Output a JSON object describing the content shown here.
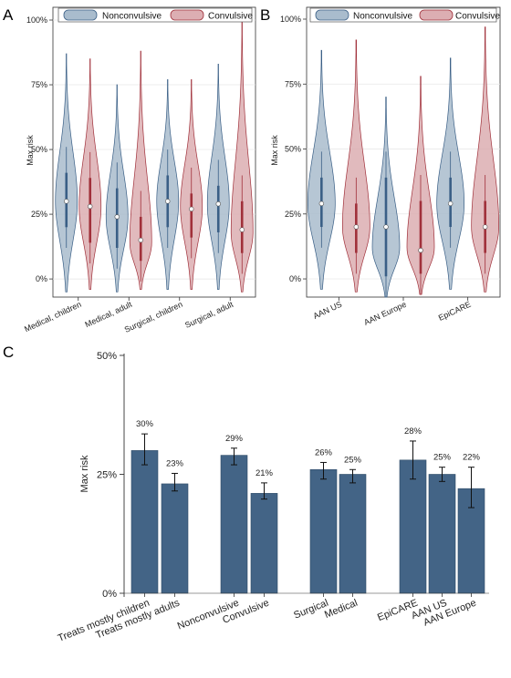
{
  "colors": {
    "nonconvulsive_fill": "#a9bccd",
    "nonconvulsive_stroke": "#3a5f86",
    "convulsive_fill": "#dcaeb2",
    "convulsive_stroke": "#a0303a",
    "bar_fill": "#436486",
    "bar_stroke": "#2e4a66"
  },
  "chart_data": [
    {
      "panel": "A",
      "type": "violin",
      "ylabel": "Max risk",
      "ytick_labels": [
        "0%",
        "25%",
        "50%",
        "75%",
        "100%"
      ],
      "yticks": [
        0,
        25,
        50,
        75,
        100
      ],
      "ylim": [
        -7,
        100
      ],
      "legend": {
        "position": "top",
        "entries": [
          "Nonconvulsive",
          "Convulsive"
        ]
      },
      "categories": [
        "Medical, children",
        "Medical, adult",
        "Surgical, children",
        "Surgical, adult"
      ],
      "series": [
        {
          "name": "Nonconvulsive",
          "median": [
            30,
            24,
            30,
            29
          ],
          "q1": [
            20,
            12,
            20,
            18
          ],
          "q3": [
            41,
            35,
            40,
            36
          ],
          "min": [
            -5,
            -5,
            -4,
            -4
          ],
          "max": [
            87,
            75,
            77,
            83
          ],
          "peak": [
            30,
            24,
            30,
            29
          ]
        },
        {
          "name": "Convulsive",
          "median": [
            28,
            15,
            27,
            19
          ],
          "q1": [
            14,
            7,
            16,
            10
          ],
          "q3": [
            39,
            24,
            33,
            30
          ],
          "min": [
            -4,
            -4,
            -4,
            -5
          ],
          "max": [
            85,
            88,
            77,
            100
          ],
          "peak": [
            28,
            14,
            28,
            18
          ]
        }
      ]
    },
    {
      "panel": "B",
      "type": "violin",
      "ylabel": "Max risk",
      "ytick_labels": [
        "0%",
        "25%",
        "50%",
        "75%",
        "100%"
      ],
      "yticks": [
        0,
        25,
        50,
        75,
        100
      ],
      "ylim": [
        -7,
        100
      ],
      "legend": {
        "position": "top",
        "entries": [
          "Nonconvulsive",
          "Convulsive"
        ]
      },
      "categories": [
        "AAN US",
        "AAN Europe",
        "EpiCARE"
      ],
      "series": [
        {
          "name": "Nonconvulsive",
          "median": [
            29,
            20,
            29
          ],
          "q1": [
            20,
            1,
            20
          ],
          "q3": [
            39,
            39,
            39
          ],
          "min": [
            -4,
            -7,
            -4
          ],
          "max": [
            88,
            70,
            85
          ],
          "peak": [
            29,
            12,
            29
          ]
        },
        {
          "name": "Convulsive",
          "median": [
            20,
            11,
            20
          ],
          "q1": [
            10,
            2,
            10
          ],
          "q3": [
            29,
            30,
            30
          ],
          "min": [
            -5,
            -6,
            -5
          ],
          "max": [
            92,
            78,
            97
          ],
          "peak": [
            20,
            12,
            20
          ]
        }
      ]
    },
    {
      "panel": "C",
      "type": "bar",
      "ylabel": "Max risk",
      "ytick_labels": [
        "0%",
        "25%",
        "50%"
      ],
      "yticks": [
        0,
        25,
        50
      ],
      "ylim": [
        0,
        50
      ],
      "categories": [
        "Treats mostly children",
        "Treats mostly adults",
        "Nonconvulsive",
        "Convulsive",
        "Surgical",
        "Medical",
        "EpiCARE",
        "AAN US",
        "AAN Europe"
      ],
      "values": [
        30,
        23,
        29,
        21,
        26,
        25,
        28,
        25,
        22
      ],
      "value_labels": [
        "30%",
        "23%",
        "29%",
        "21%",
        "26%",
        "25%",
        "28%",
        "25%",
        "22%"
      ],
      "err_low": [
        27,
        21.5,
        27,
        19.8,
        24,
        23.2,
        24,
        23.5,
        18
      ],
      "err_high": [
        33.5,
        25.2,
        30.5,
        23.2,
        27.5,
        26,
        32,
        26.5,
        26.5
      ]
    }
  ]
}
